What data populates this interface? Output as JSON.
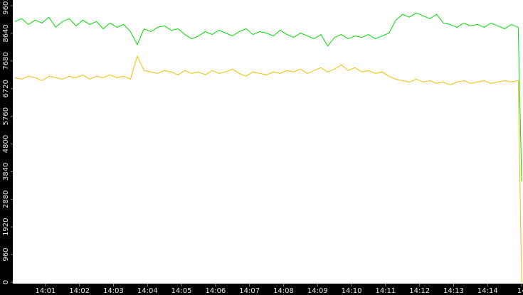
{
  "chart_data": {
    "type": "line",
    "x": [
      0.1,
      0.3,
      0.5,
      0.7,
      0.9,
      1.1,
      1.3,
      1.5,
      1.7,
      1.9,
      2.1,
      2.3,
      2.5,
      2.7,
      2.9,
      3.1,
      3.3,
      3.5,
      3.7,
      3.9,
      4.1,
      4.3,
      4.5,
      4.7,
      4.9,
      5.1,
      5.3,
      5.5,
      5.7,
      5.9,
      6.1,
      6.3,
      6.5,
      6.7,
      6.9,
      7.1,
      7.3,
      7.5,
      7.7,
      7.9,
      8.1,
      8.3,
      8.5,
      8.7,
      8.9,
      9.1,
      9.3,
      9.5,
      9.7,
      9.9,
      10.1,
      10.3,
      10.5,
      10.7,
      10.9,
      11.1,
      11.3,
      11.5,
      11.7,
      11.9,
      12.1,
      12.3,
      12.5,
      12.7,
      12.9,
      13.1,
      13.3,
      13.5,
      13.7,
      13.9,
      14.1,
      14.3,
      14.5,
      14.7,
      14.9,
      15.0
    ],
    "series": [
      {
        "color": "#00dd00",
        "values": [
          9050,
          9150,
          8950,
          9100,
          9000,
          9200,
          8850,
          9050,
          9150,
          8900,
          9100,
          8950,
          9050,
          8800,
          9000,
          8850,
          8950,
          8700,
          8250,
          8800,
          8700,
          8850,
          8900,
          8750,
          8800,
          8600,
          8450,
          8550,
          8700,
          8600,
          8750,
          8650,
          8550,
          8700,
          8800,
          8600,
          8700,
          8650,
          8550,
          8750,
          8600,
          8500,
          8650,
          8550,
          8450,
          8600,
          8200,
          8500,
          8600,
          8450,
          8550,
          8500,
          8600,
          8450,
          8550,
          8650,
          9100,
          9300,
          9200,
          9350,
          9250,
          9150,
          9300,
          9000,
          8950,
          8850,
          9000,
          8900,
          8950,
          8850,
          9000,
          8900,
          8800,
          8950,
          8850,
          3500
        ]
      },
      {
        "color": "#f0c000",
        "values": [
          7100,
          7050,
          7150,
          7100,
          7000,
          7150,
          7100,
          7050,
          7150,
          7100,
          7200,
          7050,
          7150,
          7100,
          7200,
          7100,
          7150,
          7050,
          7850,
          7350,
          7300,
          7250,
          7350,
          7300,
          7200,
          7350,
          7250,
          7300,
          7200,
          7350,
          7250,
          7300,
          7400,
          7250,
          7150,
          7300,
          7250,
          7200,
          7300,
          7250,
          7350,
          7300,
          7400,
          7250,
          7350,
          7450,
          7300,
          7400,
          7550,
          7350,
          7450,
          7300,
          7350,
          7250,
          7300,
          7150,
          7050,
          7000,
          6950,
          7050,
          6950,
          7000,
          6900,
          6950,
          6850,
          6950,
          7000,
          6900,
          6950,
          7000,
          6900,
          6950,
          7000,
          6950,
          7000,
          0
        ]
      }
    ],
    "xlim": [
      0.04,
      15.04
    ],
    "xticks": [
      {
        "value": 1,
        "label": "14:01"
      },
      {
        "value": 2,
        "label": "14:02"
      },
      {
        "value": 3,
        "label": "14:03"
      },
      {
        "value": 4,
        "label": "14:04"
      },
      {
        "value": 5,
        "label": "14:05"
      },
      {
        "value": 6,
        "label": "14:06"
      },
      {
        "value": 7,
        "label": "14:07"
      },
      {
        "value": 8,
        "label": "14:08"
      },
      {
        "value": 9,
        "label": "14:09"
      },
      {
        "value": 10,
        "label": "14:10"
      },
      {
        "value": 11,
        "label": "14:11"
      },
      {
        "value": 12,
        "label": "14:12"
      },
      {
        "value": 13,
        "label": "14:13"
      },
      {
        "value": 14,
        "label": "14:14"
      },
      {
        "value": 15,
        "label": "14"
      }
    ],
    "ylim": [
      0,
      9601
    ],
    "yticks": [
      0,
      960,
      1920,
      2880,
      3840,
      4800,
      5760,
      6720,
      7680,
      8640,
      9601
    ]
  }
}
